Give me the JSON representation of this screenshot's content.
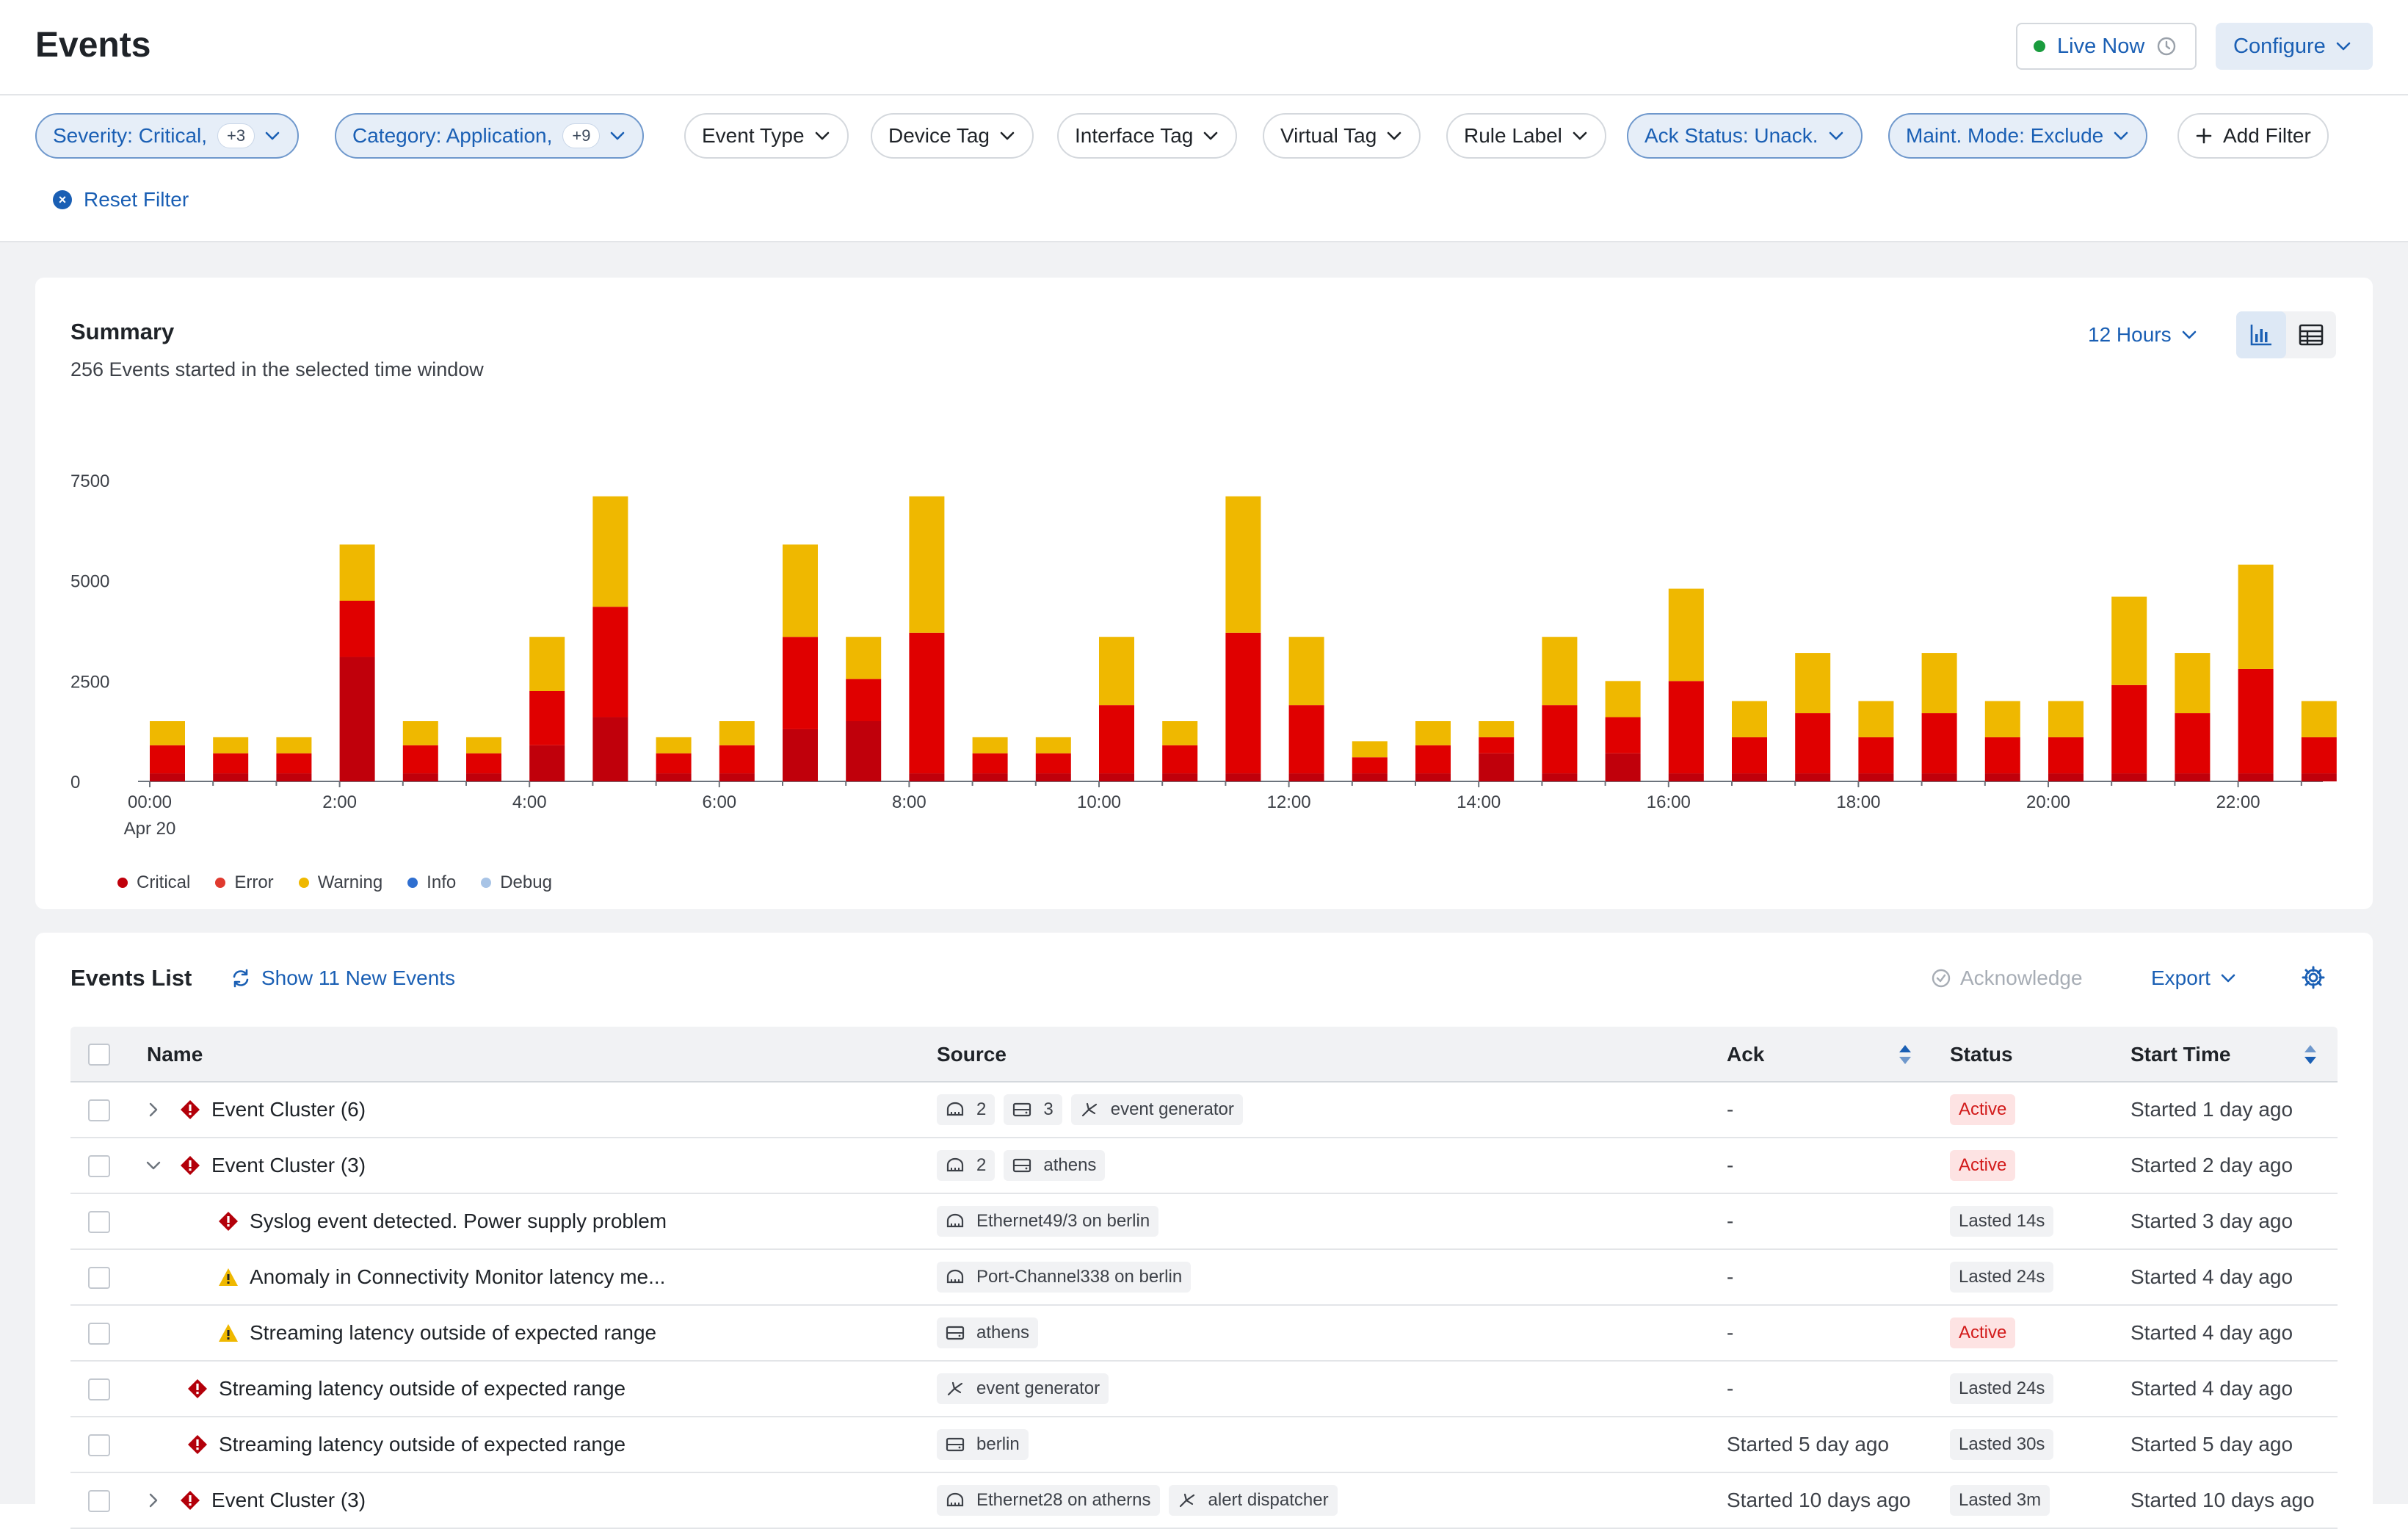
{
  "header": {
    "title": "Events",
    "live_label": "Live Now",
    "configure_label": "Configure"
  },
  "filters": {
    "chips": [
      {
        "label": "Severity: Critical,",
        "count": "+3",
        "active": true
      },
      {
        "label": "Category: Application,",
        "count": "+9",
        "active": true
      },
      {
        "label": "Event Type",
        "active": false
      },
      {
        "label": "Device Tag",
        "active": false
      },
      {
        "label": "Interface Tag",
        "active": false
      },
      {
        "label": "Virtual Tag",
        "active": false
      },
      {
        "label": "Rule Label",
        "active": false
      },
      {
        "label": "Ack Status: Unack.",
        "active": true
      },
      {
        "label": "Maint. Mode: Exclude",
        "active": true
      }
    ],
    "add_filter_label": "Add Filter",
    "reset_label": "Reset Filter"
  },
  "summary": {
    "title": "Summary",
    "subtitle": "256 Events started in the selected time window",
    "range_label": "12 Hours"
  },
  "chart_data": {
    "type": "bar",
    "stacked": true,
    "ylim": [
      0,
      7500
    ],
    "yticks": [
      "7500",
      "5000",
      "2500",
      "0"
    ],
    "ytick_values": [
      7500,
      5000,
      2500,
      0
    ],
    "xtick_labels": [
      "00:00",
      "2:00",
      "4:00",
      "6:00",
      "8:00",
      "10:00",
      "12:00",
      "14:00",
      "16:00",
      "18:00",
      "20:00",
      "22:00"
    ],
    "xtick_sublabel": "Apr 20",
    "categories": [
      "00:00",
      "00:40",
      "01:20",
      "02:00",
      "02:40",
      "03:20",
      "04:00",
      "04:40",
      "05:20",
      "06:00",
      "06:40",
      "07:20",
      "08:00",
      "08:40",
      "09:20",
      "10:00",
      "10:40",
      "11:20",
      "12:00",
      "12:40",
      "13:20",
      "14:00",
      "14:40",
      "15:20",
      "16:00",
      "16:40",
      "17:20",
      "18:00",
      "18:40",
      "19:20",
      "20:00",
      "20:40",
      "21:20",
      "22:00",
      "22:40"
    ],
    "series": [
      {
        "name": "Critical",
        "color": "#c0000b",
        "values": [
          200,
          200,
          200,
          3100,
          200,
          200,
          900,
          1600,
          200,
          200,
          1300,
          1500,
          200,
          200,
          200,
          200,
          200,
          200,
          200,
          200,
          200,
          700,
          200,
          700,
          200,
          200,
          200,
          200,
          200,
          200,
          200,
          200,
          200,
          200,
          200
        ]
      },
      {
        "name": "Error",
        "color": "#e00000",
        "values": [
          700,
          500,
          500,
          1400,
          700,
          500,
          1350,
          2750,
          500,
          700,
          2300,
          1050,
          3500,
          500,
          500,
          1700,
          700,
          3500,
          1700,
          400,
          700,
          400,
          1700,
          900,
          2300,
          900,
          1500,
          900,
          1500,
          900,
          900,
          2200,
          1500,
          2600,
          900
        ]
      },
      {
        "name": "Warning",
        "color": "#efb800",
        "values": [
          600,
          400,
          400,
          1400,
          600,
          400,
          1350,
          2750,
          400,
          600,
          2300,
          1050,
          3400,
          400,
          400,
          1700,
          600,
          3400,
          1700,
          400,
          600,
          400,
          1700,
          900,
          2300,
          900,
          1500,
          900,
          1500,
          900,
          900,
          2200,
          1500,
          2600,
          900
        ]
      },
      {
        "name": "Info",
        "color": "#2f6fd0",
        "values": [
          0,
          0,
          0,
          0,
          0,
          0,
          0,
          0,
          0,
          0,
          0,
          0,
          0,
          0,
          0,
          0,
          0,
          0,
          0,
          0,
          0,
          0,
          0,
          0,
          0,
          0,
          0,
          0,
          0,
          0,
          0,
          0,
          0,
          0,
          0
        ]
      },
      {
        "name": "Debug",
        "color": "#a8c4e6",
        "values": [
          0,
          0,
          0,
          0,
          0,
          0,
          0,
          0,
          0,
          0,
          0,
          0,
          0,
          0,
          0,
          0,
          0,
          0,
          0,
          0,
          0,
          0,
          0,
          0,
          0,
          0,
          0,
          0,
          0,
          0,
          0,
          0,
          0,
          0,
          0
        ]
      }
    ]
  },
  "events_list": {
    "title": "Events List",
    "new_events_label": "Show 11 New Events",
    "acknowledge_label": "Acknowledge",
    "export_label": "Export",
    "columns": {
      "name": "Name",
      "source": "Source",
      "ack": "Ack",
      "status": "Status",
      "start_time": "Start Time"
    },
    "rows": [
      {
        "caret": "right",
        "indent": 0,
        "severity": "critical",
        "name": "Event Cluster (6)",
        "tags": [
          {
            "icon": "interface",
            "text": "2"
          },
          {
            "icon": "device",
            "text": "3"
          },
          {
            "icon": "generator",
            "text": "event generator"
          }
        ],
        "ack": "-",
        "status": "Active",
        "status_kind": "active",
        "start": "Started 1 day ago"
      },
      {
        "caret": "down",
        "indent": 0,
        "severity": "critical",
        "name": "Event Cluster (3)",
        "tags": [
          {
            "icon": "interface",
            "text": "2"
          },
          {
            "icon": "device",
            "text": "athens"
          }
        ],
        "ack": "-",
        "status": "Active",
        "status_kind": "active",
        "start": "Started 2 day ago"
      },
      {
        "caret": "",
        "indent": 2,
        "severity": "critical",
        "name": "Syslog event detected. Power supply problem",
        "tags": [
          {
            "icon": "interface",
            "text": "Ethernet49/3 on berlin"
          }
        ],
        "ack": "-",
        "status": "Lasted 14s",
        "status_kind": "lasted",
        "start": "Started 3 day ago"
      },
      {
        "caret": "",
        "indent": 2,
        "severity": "warning",
        "name": "Anomaly in Connectivity Monitor latency me...",
        "tags": [
          {
            "icon": "interface",
            "text": "Port-Channel338 on berlin"
          }
        ],
        "ack": "-",
        "status": "Lasted 24s",
        "status_kind": "lasted",
        "start": "Started 4 day ago"
      },
      {
        "caret": "",
        "indent": 2,
        "severity": "warning",
        "name": "Streaming latency outside of expected range",
        "tags": [
          {
            "icon": "device",
            "text": "athens"
          }
        ],
        "ack": "-",
        "status": "Active",
        "status_kind": "active",
        "start": "Started 4 day ago"
      },
      {
        "caret": "",
        "indent": 1,
        "severity": "critical",
        "name": "Streaming latency outside of expected range",
        "tags": [
          {
            "icon": "generator",
            "text": "event generator"
          }
        ],
        "ack": "-",
        "status": "Lasted 24s",
        "status_kind": "lasted",
        "start": "Started 4 day ago"
      },
      {
        "caret": "",
        "indent": 1,
        "severity": "critical",
        "name": "Streaming latency outside of expected range",
        "tags": [
          {
            "icon": "device",
            "text": "berlin"
          }
        ],
        "ack": "Started 5 day ago",
        "status": "Lasted 30s",
        "status_kind": "lasted",
        "start": "Started 5 day ago"
      },
      {
        "caret": "right",
        "indent": 0,
        "severity": "critical",
        "name": "Event Cluster (3)",
        "tags": [
          {
            "icon": "interface",
            "text": "Ethernet28 on atherns"
          },
          {
            "icon": "generator",
            "text": "alert dispatcher"
          }
        ],
        "ack": "Started 10 days ago",
        "status": "Lasted 3m",
        "status_kind": "lasted",
        "start": "Started 10 days ago"
      }
    ]
  }
}
